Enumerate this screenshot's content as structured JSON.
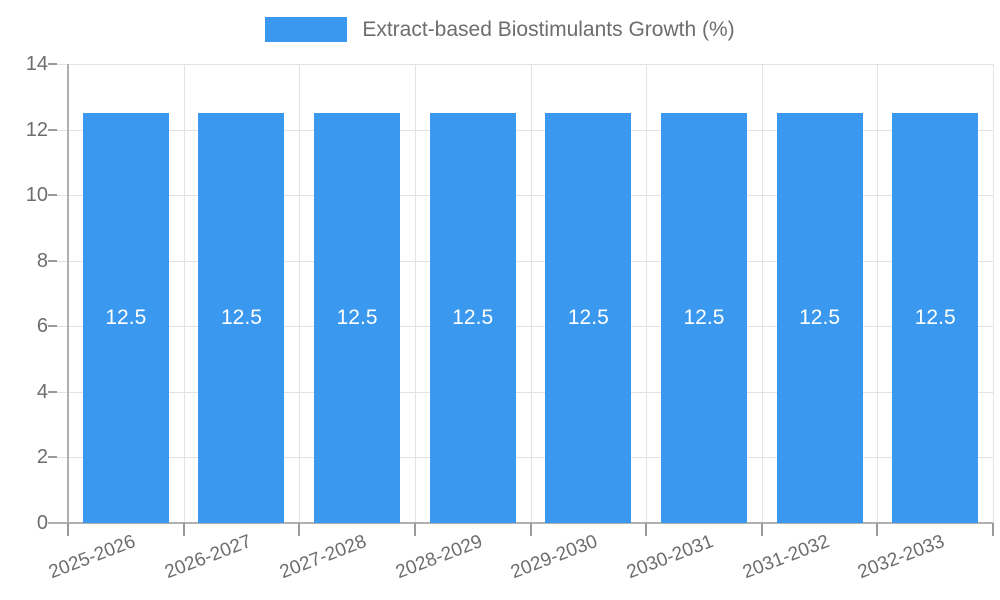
{
  "legend": {
    "label": "Extract-based Biostimulants Growth (%)",
    "swatch_color": "#3a99ee"
  },
  "chart_data": {
    "type": "bar",
    "title": "Extract-based Biostimulants Growth (%)",
    "categories": [
      "2025-2026",
      "2026-2027",
      "2027-2028",
      "2028-2029",
      "2029-2030",
      "2030-2031",
      "2031-2032",
      "2032-2033"
    ],
    "values": [
      12.5,
      12.5,
      12.5,
      12.5,
      12.5,
      12.5,
      12.5,
      12.5
    ],
    "bar_labels": [
      "12.5",
      "12.5",
      "12.5",
      "12.5",
      "12.5",
      "12.5",
      "12.5",
      "12.5"
    ],
    "xlabel": "",
    "ylabel": "",
    "ylim": [
      0,
      14
    ],
    "yticks": [
      0,
      2,
      4,
      6,
      8,
      10,
      12,
      14
    ],
    "grid": true,
    "legend_position": "top-center",
    "bar_color": "#3a99ee",
    "bar_label_color": "#ffffff"
  },
  "colors": {
    "grid": "#e3e3e3",
    "axis": "#b0b0b0",
    "tick": "#9a9a9a",
    "text": "#6d6d6d"
  }
}
